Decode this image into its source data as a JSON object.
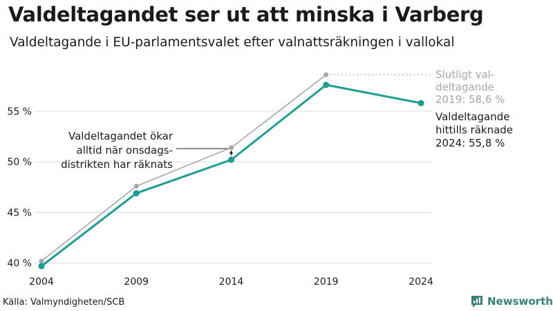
{
  "header": {
    "title": "Valdeltagandet ser ut att minska i Varberg",
    "subtitle": "Valdeltagande i EU-parlamentsvalet efter valnattsräkningen i vallokal"
  },
  "chart_data": {
    "type": "line",
    "x": [
      "2004",
      "2009",
      "2014",
      "2019",
      "2024"
    ],
    "series": [
      {
        "name": "Slutligt valdeltagande",
        "values": [
          40.2,
          47.6,
          51.4,
          58.6,
          null
        ],
        "color": "#a6a6a6"
      },
      {
        "name": "Valdeltagande hittills räknade",
        "values": [
          39.7,
          46.9,
          50.2,
          57.6,
          55.8
        ],
        "color": "#1a9e92"
      }
    ],
    "yticks": [
      {
        "value": 40,
        "label": "40 %"
      },
      {
        "value": 45,
        "label": "45 %"
      },
      {
        "value": 50,
        "label": "50 %"
      },
      {
        "value": 55,
        "label": "55 %"
      }
    ],
    "ylim": [
      39.5,
      59.5
    ],
    "grid": true,
    "annotations": {
      "final": [
        "Slutligt val-",
        "deltagande",
        "2019: 58,6 %"
      ],
      "counted": [
        "Valdeltagande",
        "hittills räknade",
        "2024: 55,8 %"
      ],
      "note": [
        "Valdeltagandet ökar",
        "alltid när onsdags-",
        "distrikten har räknats"
      ]
    }
  },
  "footer": {
    "source": "Källa: Valmyndigheten/SCB",
    "brand": "Newsworthy",
    "brand_icon": "newsworthy-logo-icon",
    "brand_color": "#35807a"
  }
}
